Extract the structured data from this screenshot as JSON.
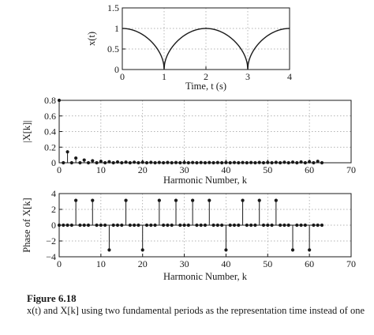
{
  "caption": {
    "title": "Figure 6.18",
    "text": "x(t) and X[k] using two fundamental periods as the representation time instead of one"
  },
  "colors": {
    "line": "#1a1a1a",
    "grid": "#9a9a9a",
    "axes": "#1a1a1a"
  },
  "chart_data": [
    {
      "type": "line",
      "ylabel": "x(t)",
      "xlabel": "Time, t (s)",
      "xlim": [
        0,
        4
      ],
      "ylim": [
        0,
        1.5
      ],
      "xticks": [
        0,
        1,
        2,
        3,
        4
      ],
      "yticks": [
        0,
        0.5,
        1,
        1.5
      ],
      "xtick_labels": [
        "0",
        "1",
        "2",
        "3",
        "4"
      ],
      "ytick_labels": [
        "0",
        "0.5",
        "1",
        "1.5"
      ],
      "grid": true,
      "function": "abs(cos(pi*t/2))^0.5 approx — arched lobes touching 0 at t=1 and t=3, peak 1 at t=0, 2, 4",
      "x": [
        0,
        0.2,
        0.4,
        0.6,
        0.8,
        0.9,
        0.95,
        1.0,
        1.05,
        1.1,
        1.2,
        1.4,
        1.6,
        1.8,
        2.0,
        2.2,
        2.4,
        2.6,
        2.8,
        2.9,
        2.95,
        3.0,
        3.05,
        3.1,
        3.2,
        3.4,
        3.6,
        3.8,
        4.0
      ],
      "y": [
        1.0,
        0.98,
        0.92,
        0.8,
        0.6,
        0.44,
        0.31,
        0.0,
        0.31,
        0.44,
        0.6,
        0.8,
        0.92,
        0.98,
        1.0,
        0.98,
        0.92,
        0.8,
        0.6,
        0.44,
        0.31,
        0.0,
        0.31,
        0.44,
        0.6,
        0.8,
        0.92,
        0.98,
        1.0
      ]
    },
    {
      "type": "stem",
      "ylabel": "|X[k]|",
      "xlabel": "Harmonic Number, k",
      "xlim": [
        0,
        70
      ],
      "ylim": [
        0,
        0.8
      ],
      "xticks": [
        0,
        10,
        20,
        30,
        40,
        50,
        60,
        70
      ],
      "yticks": [
        0,
        0.2,
        0.4,
        0.6,
        0.8
      ],
      "xtick_labels": [
        "0",
        "10",
        "20",
        "30",
        "40",
        "50",
        "60",
        "70"
      ],
      "ytick_labels": [
        "0",
        "0.2",
        "0.4",
        "0.6",
        "0.8"
      ],
      "grid": true,
      "k": [
        0,
        1,
        2,
        3,
        4,
        5,
        6,
        7,
        8,
        9,
        10,
        11,
        12,
        13,
        14,
        15,
        16,
        17,
        18,
        19,
        20,
        21,
        22,
        23,
        24,
        25,
        26,
        27,
        28,
        29,
        30,
        31,
        32,
        33,
        34,
        35,
        36,
        37,
        38,
        39,
        40,
        41,
        42,
        43,
        44,
        45,
        46,
        47,
        48,
        49,
        50,
        51,
        52,
        53,
        54,
        55,
        56,
        57,
        58,
        59,
        60,
        61,
        62,
        63
      ],
      "values": [
        0.8,
        0,
        0.14,
        0,
        0.06,
        0,
        0.035,
        0,
        0.025,
        0,
        0.018,
        0,
        0.013,
        0,
        0.01,
        0,
        0.008,
        0,
        0.007,
        0,
        0.006,
        0,
        0.005,
        0,
        0.004,
        0,
        0.004,
        0,
        0.003,
        0,
        0.003,
        0,
        0.003,
        0,
        0.003,
        0,
        0.003,
        0,
        0.003,
        0,
        0.003,
        0,
        0.003,
        0,
        0.003,
        0,
        0.003,
        0,
        0.004,
        0,
        0.004,
        0,
        0.005,
        0,
        0.006,
        0,
        0.008,
        0,
        0.01,
        0,
        0.013,
        0,
        0.018,
        0
      ]
    },
    {
      "type": "stem",
      "ylabel": "Phase of X[k]",
      "xlabel": "Harmonic Number, k",
      "xlim": [
        0,
        70
      ],
      "ylim": [
        -4,
        4
      ],
      "xticks": [
        0,
        10,
        20,
        30,
        40,
        50,
        60,
        70
      ],
      "yticks": [
        -4,
        -2,
        0,
        2,
        4
      ],
      "xtick_labels": [
        "0",
        "10",
        "20",
        "30",
        "40",
        "50",
        "60",
        "70"
      ],
      "ytick_labels": [
        "−4",
        "−2",
        "0",
        "2",
        "4"
      ],
      "grid": true,
      "k": [
        0,
        1,
        2,
        3,
        4,
        5,
        6,
        7,
        8,
        9,
        10,
        11,
        12,
        13,
        14,
        15,
        16,
        17,
        18,
        19,
        20,
        21,
        22,
        23,
        24,
        25,
        26,
        27,
        28,
        29,
        30,
        31,
        32,
        33,
        34,
        35,
        36,
        37,
        38,
        39,
        40,
        41,
        42,
        43,
        44,
        45,
        46,
        47,
        48,
        49,
        50,
        51,
        52,
        53,
        54,
        55,
        56,
        57,
        58,
        59,
        60,
        61,
        62,
        63
      ],
      "values": [
        0,
        0,
        0,
        0,
        3.14,
        0,
        0,
        0,
        3.14,
        0,
        0,
        0,
        -3.14,
        0,
        0,
        0,
        3.14,
        0,
        0,
        0,
        -3.14,
        0,
        0,
        0,
        3.14,
        0,
        0,
        0,
        3.14,
        0,
        0,
        0,
        3.14,
        0,
        0,
        0,
        3.14,
        0,
        0,
        0,
        -3.14,
        0,
        0,
        0,
        3.14,
        0,
        0,
        0,
        3.14,
        0,
        0,
        0,
        3.14,
        0,
        0,
        0,
        -3.14,
        0,
        0,
        0,
        -3.14,
        0,
        0,
        0
      ]
    }
  ]
}
